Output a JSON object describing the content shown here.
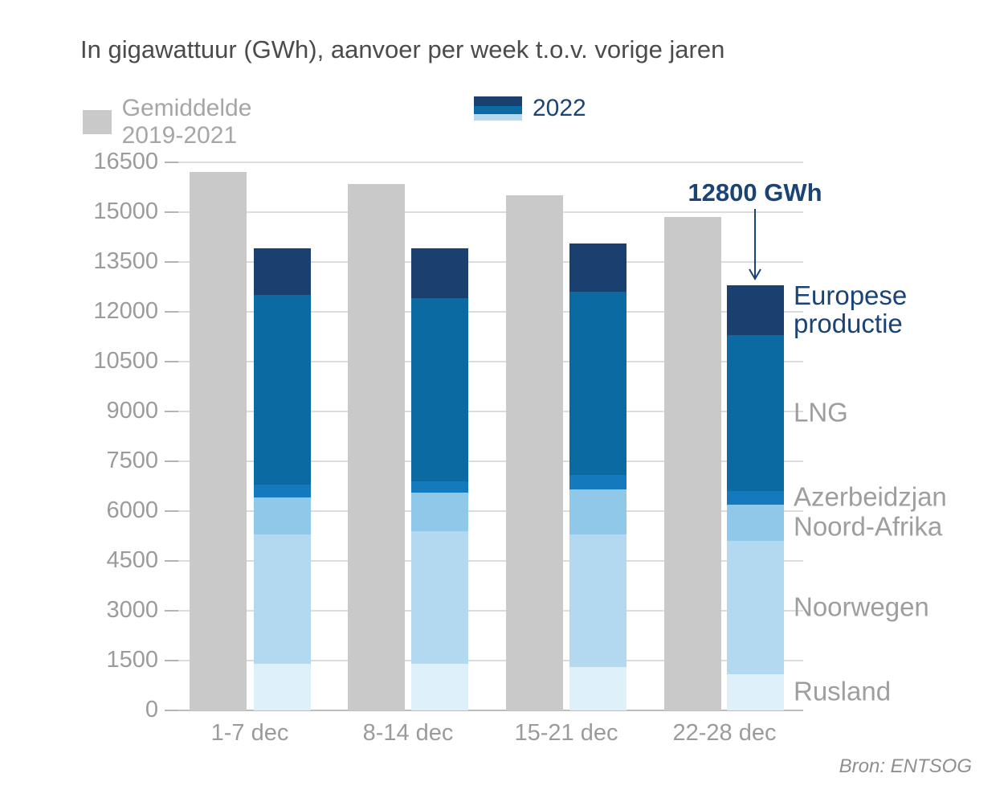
{
  "title": "In gigawattuur (GWh), aanvoer per week t.o.v. vorige jaren",
  "legend": {
    "average_label": "Gemiddelde 2019-2021",
    "year_label": "2022"
  },
  "annotation": {
    "text": "12800 GWh",
    "points_to_category": "22-28 dec",
    "points_to_value": 12800
  },
  "source": "Bron: ENTSOG",
  "colors": {
    "average_bar": "#c9c9c9",
    "navy": "#1a406f",
    "lng_blue": "#0a6aa1",
    "azerbeidzjan_blue": "#1579bd",
    "noord_afrika_blue": "#8fc8e9",
    "noorwegen_blue": "#b2d9f0",
    "rusland_blue": "#def0f9",
    "text_navy": "#1a4376",
    "text_gray": "#9b9b9b",
    "gridline": "#dcdcdc"
  },
  "chart_data": {
    "type": "bar",
    "title": "In gigawattuur (GWh), aanvoer per week t.o.v. vorige jaren",
    "categories": [
      "1-7 dec",
      "8-14 dec",
      "15-21 dec",
      "22-28 dec"
    ],
    "average_series": {
      "name": "Gemiddelde 2019-2021",
      "values": [
        16200,
        15850,
        15500,
        14850
      ],
      "color": "#c9c9c9"
    },
    "stacked_series": [
      {
        "name": "Rusland",
        "color": "#def0f9",
        "label_emphasis": false,
        "values": [
          1400,
          1400,
          1300,
          1100
        ]
      },
      {
        "name": "Noorwegen",
        "color": "#b2d9f0",
        "label_emphasis": false,
        "values": [
          3900,
          4000,
          4000,
          4000
        ]
      },
      {
        "name": "Noord-Afrika",
        "color": "#8fc8e9",
        "label_emphasis": false,
        "values": [
          1100,
          1150,
          1350,
          1100
        ]
      },
      {
        "name": "Azerbeidzjan",
        "color": "#1579bd",
        "label_emphasis": false,
        "values": [
          400,
          350,
          450,
          400
        ]
      },
      {
        "name": "LNG",
        "color": "#0a6aa1",
        "label_emphasis": false,
        "values": [
          5700,
          5500,
          5500,
          4700
        ]
      },
      {
        "name": "Europese productie",
        "color": "#1a406f",
        "label_emphasis": true,
        "values": [
          1400,
          1500,
          1450,
          1500
        ]
      }
    ],
    "stack_totals_2022": [
      13900,
      13900,
      14050,
      12800
    ],
    "xlabel": "",
    "ylabel": "GWh",
    "ylim": [
      0,
      16500
    ],
    "yticks": [
      0,
      1500,
      3000,
      4500,
      6000,
      7500,
      9000,
      10500,
      12000,
      13500,
      15000,
      16500
    ],
    "grid": true,
    "legend_position": "top"
  }
}
